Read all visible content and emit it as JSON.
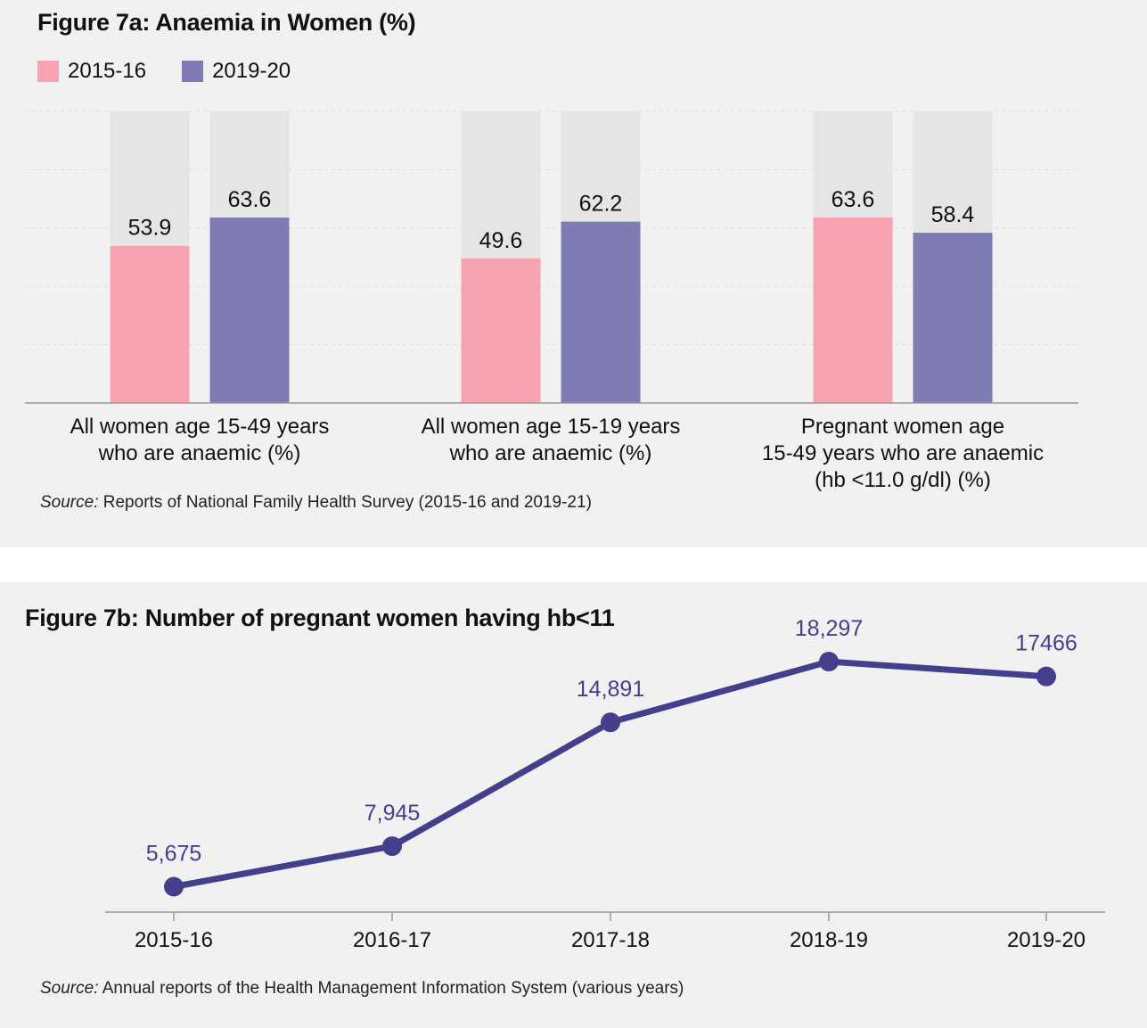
{
  "chart_data": [
    {
      "type": "bar",
      "title": "Figure 7a: Anaemia in Women (%)",
      "categories": [
        [
          "All women age 15-49 years",
          "who are anaemic (%)"
        ],
        [
          "All women age 15-19 years",
          "who are anaemic (%)"
        ],
        [
          "Pregnant women age",
          "15-49 years who are anaemic",
          "(hb <11.0 g/dl) (%)"
        ]
      ],
      "series": [
        {
          "name": "2015-16",
          "color": "#f8a3b2",
          "values": [
            53.9,
            49.6,
            63.6
          ]
        },
        {
          "name": "2019-20",
          "color": "#7f7bb3",
          "values": [
            63.6,
            62.2,
            58.4
          ]
        }
      ],
      "ylim": [
        0,
        100
      ],
      "grid": true,
      "legend_position": "top-left",
      "background_bar_color": "#e5e5e5",
      "source_label": "Source:",
      "source_text": "Reports of National Family Health Survey (2015-16 and 2019-21)"
    },
    {
      "type": "line",
      "title": "Figure 7b: Number of pregnant women having hb<11",
      "x": [
        "2015-16",
        "2016-17",
        "2017-18",
        "2018-19",
        "2019-20"
      ],
      "series": [
        {
          "values": [
            5675,
            7945,
            14891,
            18297,
            17466
          ],
          "color": "#433f8c"
        }
      ],
      "data_labels": [
        "5,675",
        "7,945",
        "14,891",
        "18,297",
        "17466"
      ],
      "ylim": [
        4500,
        19500
      ],
      "grid": false,
      "source_label": "Source:",
      "source_text": "Annual reports of the Health Management Information System (various years)"
    }
  ]
}
